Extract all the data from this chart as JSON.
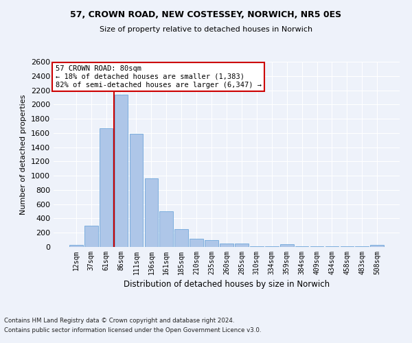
{
  "title_line1": "57, CROWN ROAD, NEW COSTESSEY, NORWICH, NR5 0ES",
  "title_line2": "Size of property relative to detached houses in Norwich",
  "xlabel": "Distribution of detached houses by size in Norwich",
  "ylabel": "Number of detached properties",
  "categories": [
    "12sqm",
    "37sqm",
    "61sqm",
    "86sqm",
    "111sqm",
    "136sqm",
    "161sqm",
    "185sqm",
    "210sqm",
    "235sqm",
    "260sqm",
    "285sqm",
    "310sqm",
    "334sqm",
    "359sqm",
    "384sqm",
    "409sqm",
    "434sqm",
    "458sqm",
    "483sqm",
    "508sqm"
  ],
  "values": [
    25,
    300,
    1670,
    2140,
    1590,
    960,
    500,
    250,
    120,
    100,
    50,
    50,
    5,
    5,
    35,
    5,
    5,
    5,
    5,
    5,
    25
  ],
  "bar_color": "#aec6e8",
  "bar_edge_color": "#5b9bd5",
  "vline_x_index": 3,
  "vline_color": "#cc0000",
  "annotation_text": "57 CROWN ROAD: 80sqm\n← 18% of detached houses are smaller (1,383)\n82% of semi-detached houses are larger (6,347) →",
  "annotation_box_color": "#ffffff",
  "annotation_box_edge_color": "#cc0000",
  "ylim": [
    0,
    2600
  ],
  "yticks": [
    0,
    200,
    400,
    600,
    800,
    1000,
    1200,
    1400,
    1600,
    1800,
    2000,
    2200,
    2400,
    2600
  ],
  "footnote_line1": "Contains HM Land Registry data © Crown copyright and database right 2024.",
  "footnote_line2": "Contains public sector information licensed under the Open Government Licence v3.0.",
  "background_color": "#eef2fa",
  "plot_bg_color": "#eef2fa"
}
